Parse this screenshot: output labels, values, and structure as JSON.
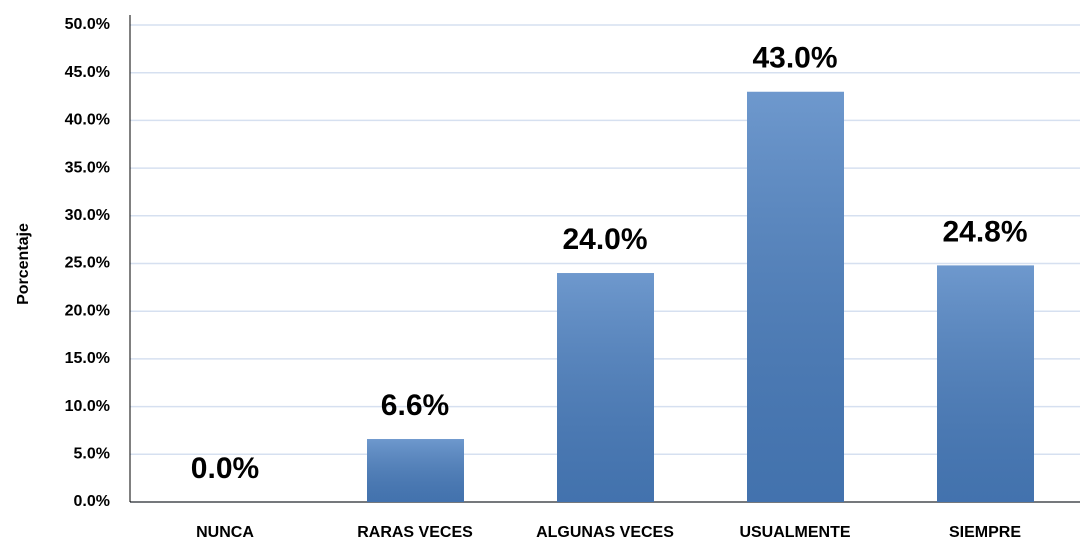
{
  "chart_data": {
    "type": "bar",
    "ylabel": "Porcentaje",
    "categories": [
      "NUNCA",
      "RARAS VECES",
      "ALGUNAS VECES",
      "USUALMENTE",
      "SIEMPRE"
    ],
    "values": [
      0,
      6.6,
      24,
      43,
      24.8
    ],
    "value_labels": [
      "0.0%",
      "6.6%",
      "24.0%",
      "43.0%",
      "24.8%"
    ],
    "color": "#4a7fc1",
    "ylim": [
      0,
      50
    ],
    "yticks": [
      {
        "value": 0,
        "label": "0.0%"
      },
      {
        "value": 5,
        "label": "5.0%"
      },
      {
        "value": 10,
        "label": "10.0%"
      },
      {
        "value": 15,
        "label": "15.0%"
      },
      {
        "value": 20,
        "label": "20.0%"
      },
      {
        "value": 25,
        "label": "25.0%"
      },
      {
        "value": 30,
        "label": "30.0%"
      },
      {
        "value": 35,
        "label": "35.0%"
      },
      {
        "value": 40,
        "label": "40.0%"
      },
      {
        "value": 45,
        "label": "45.0%"
      },
      {
        "value": 50,
        "label": "50.0%"
      }
    ],
    "grid": true
  }
}
